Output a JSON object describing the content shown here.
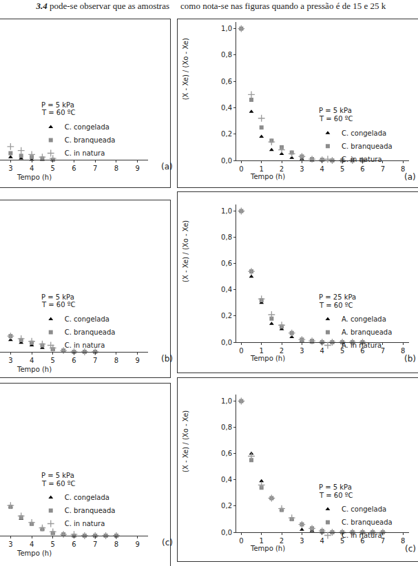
{
  "text_left": [
    "3.4",
    " pode-se observar que as amostras"
  ],
  "text_right": "como nota-se nas figuras quando a pressão é de 15 e 25 k",
  "chart_data": [
    {
      "type": "scatter",
      "label": "(a)",
      "x_label": "Tempo (h)",
      "annotations": [
        "P = 5 kPa",
        "T = 60 ºC"
      ],
      "x": [
        3,
        3.5,
        4,
        4.5,
        5
      ],
      "series": [
        {
          "name": "C. congelada",
          "color": "#000000",
          "marker": "triangle-up",
          "values": [
            0.02,
            0.01,
            0,
            0,
            0
          ]
        },
        {
          "name": "C. branqueada",
          "color": "#8c8c8c",
          "marker": "square",
          "values": [
            0.05,
            0.03,
            0.02,
            0.01,
            0
          ]
        },
        {
          "name": "C. in natura",
          "color": "#9a9a9a",
          "marker": "cross-thin",
          "values": [
            0.1,
            0.07,
            0.04,
            0.02,
            0.01
          ]
        }
      ],
      "xlim": [
        2.5,
        9.5
      ],
      "xticks": [
        3,
        4,
        5,
        6,
        7,
        8,
        9
      ],
      "ylim": [
        0,
        1.05
      ],
      "tick_labels": "x",
      "grid": false,
      "legend": "center"
    },
    {
      "type": "scatter",
      "label": "(b)",
      "x_label": "Tempo (h)",
      "annotations": [
        "P = 5 kPa",
        "T = 60 ºC"
      ],
      "x": [
        3,
        3.5,
        4,
        4.5,
        5,
        5.5,
        6,
        6.5,
        7
      ],
      "series": [
        {
          "name": "C. congelada",
          "color": "#000000",
          "marker": "triangle-up",
          "values": [
            0.09,
            0.07,
            0.05,
            0.03,
            0.02,
            0.01,
            0,
            0,
            0
          ]
        },
        {
          "name": "C. branqueada",
          "color": "#8c8c8c",
          "marker": "square",
          "values": [
            0.12,
            0.09,
            0.07,
            0.05,
            0.02,
            0.01,
            0,
            0,
            0
          ]
        },
        {
          "name": "C. in natura",
          "color": "#9a9a9a",
          "marker": "cross-thin",
          "values": [
            0.12,
            0.1,
            0.08,
            0.06,
            0.03,
            0.01,
            0,
            0,
            0
          ]
        }
      ],
      "xlim": [
        2.5,
        9.5
      ],
      "xticks": [
        3,
        4,
        5,
        6,
        7,
        8,
        9
      ],
      "ylim": [
        0,
        1.05
      ],
      "tick_labels": "x",
      "grid": false,
      "legend": "center"
    },
    {
      "type": "scatter",
      "label": "(c)",
      "x_label": "Tempo (h)",
      "annotations": [
        "P = 5 kPa",
        "T = 60 ºC"
      ],
      "x": [
        3,
        3.5,
        4,
        4.5,
        5,
        5.5,
        6,
        6.5,
        7,
        7.5,
        8
      ],
      "series": [
        {
          "name": "C. congelada",
          "color": "#000000",
          "marker": "triangle-up",
          "values": [
            0.22,
            0.13,
            0.09,
            0.05,
            0.02,
            0.01,
            0,
            0,
            0,
            0,
            0
          ]
        },
        {
          "name": "C. branqueada",
          "color": "#8c8c8c",
          "marker": "square",
          "values": [
            0.22,
            0.14,
            0.09,
            0.05,
            0.02,
            0.01,
            0,
            0,
            0,
            0,
            0
          ]
        },
        {
          "name": "C. in natura",
          "color": "#9a9a9a",
          "marker": "cross-thin",
          "values": [
            0.23,
            0.15,
            0.1,
            0.06,
            0.03,
            0.01,
            0.01,
            0,
            0,
            0,
            0
          ]
        }
      ],
      "xlim": [
        2.5,
        9.5
      ],
      "xticks": [
        3,
        4,
        5,
        6,
        7,
        8,
        9
      ],
      "ylim": [
        0,
        1.05
      ],
      "tick_labels": "x",
      "grid": false,
      "legend": "center"
    },
    {
      "type": "scatter",
      "label": "(a)",
      "x_label": "Tempo (h)",
      "y_label": "(X - Xe) / (Xo - Xe)",
      "annotations": [
        "P = 5 kPa",
        "T = 60 ºC"
      ],
      "x": [
        0,
        0.5,
        1,
        1.5,
        2,
        2.5,
        3,
        3.5,
        4,
        4.5,
        5,
        5.5,
        6
      ],
      "series": [
        {
          "name": "C. congelada",
          "color": "#000000",
          "marker": "triangle-up",
          "values": [
            1.0,
            0.37,
            0.18,
            0.08,
            0.05,
            0.02,
            0.01,
            0,
            0,
            0,
            0,
            0,
            0
          ]
        },
        {
          "name": "C. branqueada",
          "color": "#8c8c8c",
          "marker": "square",
          "values": [
            1.0,
            0.46,
            0.25,
            0.15,
            0.1,
            0.06,
            0.03,
            0.01,
            0.005,
            0,
            0,
            0,
            0
          ]
        },
        {
          "name": "C. in natura",
          "color": "#9a9a9a",
          "marker": "cross-thin",
          "values": [
            1.0,
            0.5,
            0.32,
            0.14,
            0.08,
            0.05,
            0.03,
            0.01,
            0.005,
            0,
            0,
            0,
            0
          ]
        }
      ],
      "xlim": [
        -0.25,
        8.3
      ],
      "xticks": [
        0,
        1,
        2,
        3,
        4,
        5,
        6,
        7,
        8
      ],
      "ylim": [
        0,
        1.05
      ],
      "yticks": [
        {
          "value": 0,
          "label": "0,0"
        },
        {
          "value": 0.2,
          "label": "0,2"
        },
        {
          "value": 0.4,
          "label": "0,4"
        },
        {
          "value": 0.6,
          "label": "0,6"
        },
        {
          "value": 0.8,
          "label": "0,8"
        },
        {
          "value": 1.0,
          "label": "1,0"
        }
      ],
      "grid": false,
      "legend": "center"
    },
    {
      "type": "scatter",
      "label": "(b)",
      "x_label": "Tempo (h)",
      "y_label": "(X - Xe) / (Xo - Xe)",
      "annotations": [
        "P = 25 kPa",
        "T = 60 ºC"
      ],
      "x": [
        0,
        0.5,
        1,
        1.5,
        2,
        2.5,
        3,
        3.5,
        4,
        4.5,
        5,
        5.5,
        6
      ],
      "series": [
        {
          "name": "A. congelada",
          "color": "#000000",
          "marker": "triangle-up",
          "values": [
            1.0,
            0.5,
            0.3,
            0.14,
            0.1,
            0.04,
            0.01,
            0,
            0,
            0,
            0,
            0,
            0
          ]
        },
        {
          "name": "A. branqueada",
          "color": "#8c8c8c",
          "marker": "square",
          "values": [
            1.0,
            0.54,
            0.32,
            0.18,
            0.12,
            0.07,
            0.02,
            0.01,
            0,
            0,
            0,
            0,
            0
          ]
        },
        {
          "name": "A. in natura",
          "color": "#9a9a9a",
          "marker": "cross-thin",
          "values": [
            1.0,
            0.54,
            0.33,
            0.21,
            0.13,
            0.07,
            0.02,
            0.01,
            0,
            0,
            0,
            0,
            0
          ]
        }
      ],
      "xlim": [
        -0.25,
        8.3
      ],
      "xticks": [
        0,
        1,
        2,
        3,
        4,
        5,
        6,
        7,
        8
      ],
      "ylim": [
        0,
        1.05
      ],
      "yticks": [
        {
          "value": 0,
          "label": "0,0"
        },
        {
          "value": 0.2,
          "label": "0,2"
        },
        {
          "value": 0.4,
          "label": "0,4"
        },
        {
          "value": 0.6,
          "label": "0,6"
        },
        {
          "value": 0.8,
          "label": "0,8"
        },
        {
          "value": 1.0,
          "label": "1,0"
        }
      ],
      "grid": false,
      "legend": "center"
    },
    {
      "type": "scatter",
      "label": "(c)",
      "x_label": "Tempo (h)",
      "y_label": "(X - Xe) / (Xo - Xe)",
      "annotations": [
        "P = 5 kPa",
        "T = 60 ºC"
      ],
      "x": [
        0,
        0.5,
        1,
        1.5,
        2,
        2.5,
        3,
        3.5,
        4,
        4.5,
        5,
        5.5,
        6,
        6.5,
        7
      ],
      "series": [
        {
          "name": "C. congelada",
          "color": "#000000",
          "marker": "triangle-up",
          "values": [
            1.0,
            0.6,
            0.39,
            0.26,
            0.17,
            0.1,
            0.02,
            0.01,
            0,
            0,
            0,
            0,
            0,
            0,
            0
          ]
        },
        {
          "name": "C. branqueada",
          "color": "#8c8c8c",
          "marker": "square",
          "values": [
            1.0,
            0.55,
            0.34,
            0.26,
            0.17,
            0.1,
            0.06,
            0.03,
            0.01,
            0,
            0,
            0,
            0,
            0,
            0
          ]
        },
        {
          "name": "C. in natura",
          "color": "#9a9a9a",
          "marker": "cross-thin",
          "values": [
            1.0,
            0.58,
            0.36,
            0.26,
            0.18,
            0.11,
            0.06,
            0.03,
            0.01,
            0,
            0,
            0,
            0,
            0,
            0
          ]
        }
      ],
      "xlim": [
        -0.25,
        8.3
      ],
      "xticks": [
        0,
        1,
        2,
        3,
        4,
        5,
        6,
        7,
        8
      ],
      "ylim": [
        0,
        1.05
      ],
      "yticks": [
        {
          "value": 0,
          "label": "0,0"
        },
        {
          "value": 0.2,
          "label": "0,2"
        },
        {
          "value": 0.4,
          "label": "0,4"
        },
        {
          "value": 0.6,
          "label": "0,6"
        },
        {
          "value": 0.8,
          "label": "0,8"
        },
        {
          "value": 1.0,
          "label": "1,0"
        }
      ],
      "grid": false,
      "legend": "center"
    }
  ]
}
